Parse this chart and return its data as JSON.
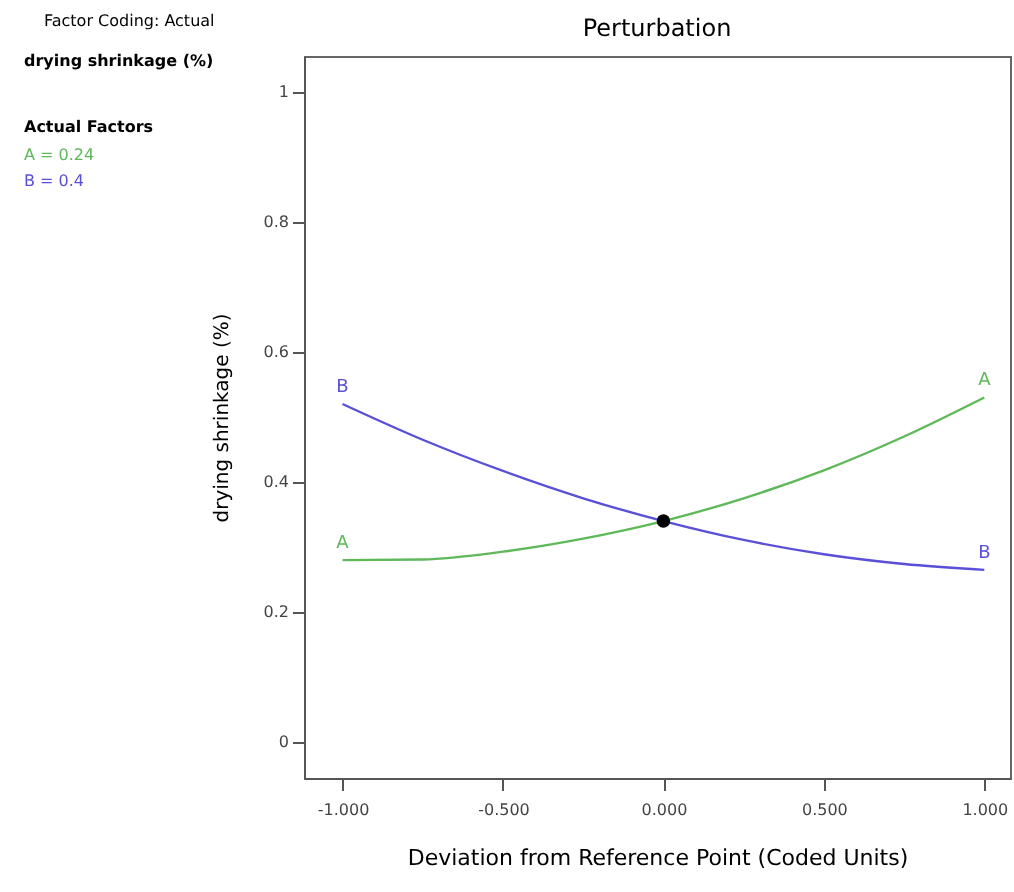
{
  "chart_data": {
    "type": "line",
    "title": "Perturbation",
    "xlabel": "Deviation from Reference Point (Coded Units)",
    "ylabel": "drying shrinkage (%)",
    "annotations": [
      "Factor Coding: Actual",
      "drying shrinkage (%)",
      "Actual Factors",
      "A = 0.24",
      "B = 0.4"
    ],
    "x": [
      -1,
      -0.75,
      -0.5,
      -0.25,
      0,
      0.25,
      0.5,
      0.75,
      1
    ],
    "series": [
      {
        "name": "A",
        "color": "#5fb85a",
        "values": [
          0.28,
          0.281,
          0.293,
          0.313,
          0.34,
          0.375,
          0.418,
          0.47,
          0.53
        ]
      },
      {
        "name": "B",
        "color": "#5a50d8",
        "values": [
          0.52,
          0.465,
          0.417,
          0.375,
          0.34,
          0.311,
          0.289,
          0.274,
          0.265
        ]
      },
      {
        "type": "scatter",
        "color": "#000000",
        "x": [
          0
        ],
        "values": [
          0.34
        ],
        "marker": "circle"
      }
    ],
    "xlim": [
      -1.12,
      1.08
    ],
    "ylim": [
      -0.055,
      1.055
    ],
    "xticks": [
      {
        "value": -1,
        "label": "-1.000"
      },
      {
        "value": -0.5,
        "label": "-0.500"
      },
      {
        "value": 0,
        "label": "0.000"
      },
      {
        "value": 0.5,
        "label": "0.500"
      },
      {
        "value": 1,
        "label": "1.000"
      }
    ],
    "yticks": [
      0,
      0.2,
      0.4,
      0.6,
      0.8,
      1
    ],
    "grid": false,
    "marker": "none",
    "line_style": "solid"
  }
}
